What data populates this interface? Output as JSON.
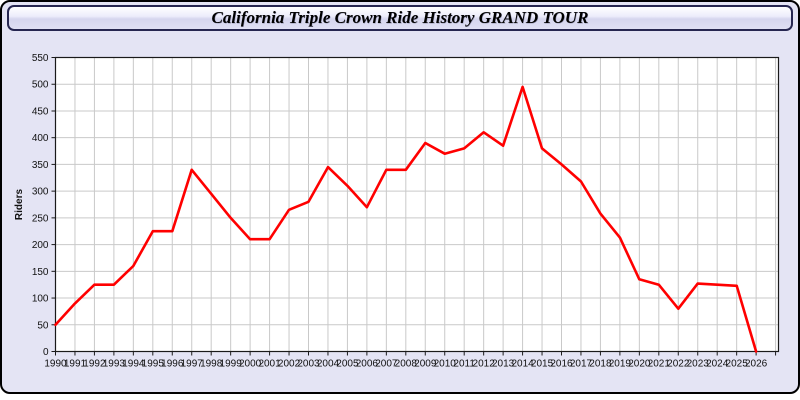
{
  "window": {
    "title": "California Triple Crown Ride History GRAND TOUR"
  },
  "colors": {
    "page_background": "#ffffff",
    "panel_background": "#e4e4f4",
    "titlebar_border": "#262650",
    "plot_background": "#ffffff",
    "gridline": "#c9c9c9",
    "axis": "#1a1a1a",
    "tick_label": "#111111",
    "line": "#ff0000"
  },
  "chart_data": {
    "type": "line",
    "title": "California Triple Crown Ride History GRAND TOUR",
    "xlabel": "",
    "ylabel": "Riders",
    "x": [
      1990,
      1991,
      1992,
      1993,
      1994,
      1995,
      1996,
      1997,
      1998,
      1999,
      2000,
      2001,
      2002,
      2003,
      2004,
      2005,
      2006,
      2007,
      2008,
      2009,
      2010,
      2011,
      2012,
      2013,
      2014,
      2015,
      2016,
      2017,
      2018,
      2019,
      2020,
      2021,
      2022,
      2023,
      2024,
      2025,
      2026
    ],
    "series": [
      {
        "name": "Riders",
        "color": "#ff0000",
        "values": [
          50,
          90,
          125,
          125,
          160,
          225,
          225,
          340,
          295,
          250,
          210,
          210,
          265,
          280,
          345,
          310,
          270,
          340,
          340,
          390,
          370,
          380,
          410,
          385,
          495,
          380,
          350,
          318,
          258,
          213,
          135,
          125,
          80,
          127,
          125,
          123,
          0
        ]
      }
    ],
    "ylim": [
      0,
      550
    ],
    "ytick_step": 50,
    "xlim": [
      1990,
      2027.15
    ],
    "xtick_step": 1,
    "grid": true,
    "legend": false
  }
}
